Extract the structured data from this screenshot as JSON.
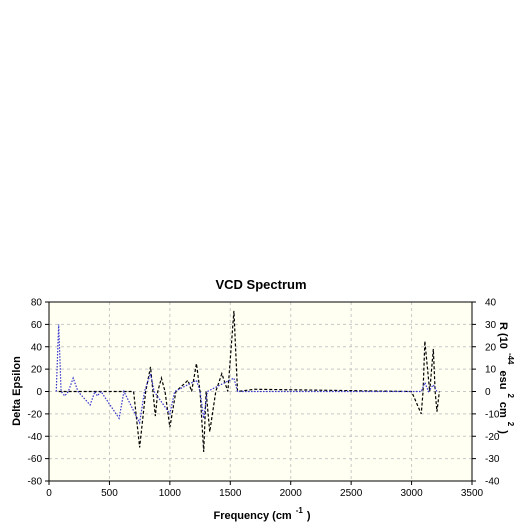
{
  "chart_data": {
    "type": "line",
    "title": "VCD Spectrum",
    "xlabel_parts": [
      "Frequency (cm",
      "-1",
      ")"
    ],
    "ylabel": "Delta Epsilon",
    "y2label_parts": [
      "R (10",
      "-44",
      "esu",
      "2",
      "cm",
      "2",
      ")"
    ],
    "xlim": [
      0,
      3500
    ],
    "xticks": [
      0,
      500,
      1000,
      1500,
      2000,
      2500,
      3000,
      3500
    ],
    "ylim": [
      -80,
      80
    ],
    "yticks": [
      -80,
      -60,
      -40,
      -20,
      0,
      20,
      40,
      60,
      80
    ],
    "y2lim": [
      -40,
      40
    ],
    "y2ticks": [
      -40,
      -30,
      -20,
      -10,
      0,
      10,
      20,
      30,
      40
    ],
    "grid": true,
    "series": [
      {
        "color": "#000000",
        "x": [
          80,
          700,
          750,
          800,
          840,
          860,
          880,
          900,
          930,
          960,
          1000,
          1050,
          1150,
          1180,
          1220,
          1250,
          1280,
          1300,
          1330,
          1380,
          1430,
          1480,
          1530,
          1560,
          1700,
          3000,
          3080,
          3095,
          3110,
          3150,
          3180,
          3195,
          3210,
          3230
        ],
        "values": [
          0,
          0,
          -50,
          0,
          22,
          0,
          -22,
          0,
          12,
          0,
          -32,
          0,
          10,
          0,
          25,
          0,
          -54,
          0,
          -36,
          0,
          16,
          0,
          72,
          0,
          2,
          0,
          -20,
          0,
          45,
          0,
          38,
          0,
          -18,
          0
        ]
      },
      {
        "color": "#3333cc",
        "axis": "y2",
        "x": [
          60,
          80,
          100,
          130,
          160,
          200,
          240,
          340,
          380,
          400,
          430,
          580,
          620,
          750,
          790,
          840,
          870,
          1000,
          1040,
          1220,
          1250,
          1280,
          1310,
          1530,
          1560,
          3080,
          3110,
          3140,
          3180,
          3210
        ],
        "values": [
          0,
          30,
          0,
          -2,
          0,
          6,
          0,
          -6,
          0,
          -2,
          0,
          -12,
          0,
          -14,
          0,
          8,
          0,
          -10,
          0,
          5,
          0,
          -12,
          0,
          6,
          0,
          0,
          4,
          0,
          3,
          0
        ]
      }
    ]
  }
}
